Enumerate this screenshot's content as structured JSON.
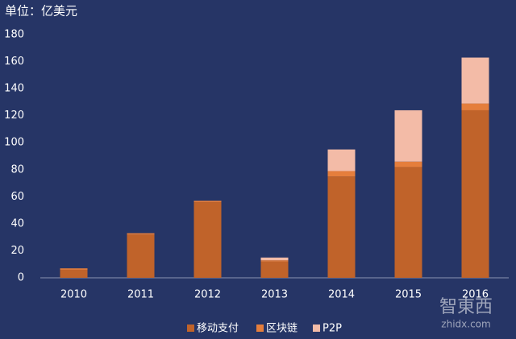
{
  "chart_data": {
    "type": "stacked-bar",
    "unit_label": "单位：亿美元",
    "categories": [
      "2010",
      "2011",
      "2012",
      "2013",
      "2014",
      "2015",
      "2016"
    ],
    "series": [
      {
        "name": "移动支付",
        "color": "#c0632a",
        "values": [
          6,
          32,
          56,
          12,
          75,
          82,
          124
        ]
      },
      {
        "name": "区块链",
        "color": "#e57e3c",
        "values": [
          1,
          1,
          1,
          1,
          4,
          4,
          5
        ]
      },
      {
        "name": "P2P",
        "color": "#f3bba7",
        "values": [
          0,
          0,
          0,
          2,
          16,
          38,
          34
        ]
      }
    ],
    "ylim": [
      0,
      180
    ],
    "yticks": [
      0,
      20,
      40,
      60,
      80,
      100,
      120,
      140,
      160,
      180
    ],
    "watermark": {
      "brand": "智東西",
      "site": "zhidx.com"
    }
  }
}
